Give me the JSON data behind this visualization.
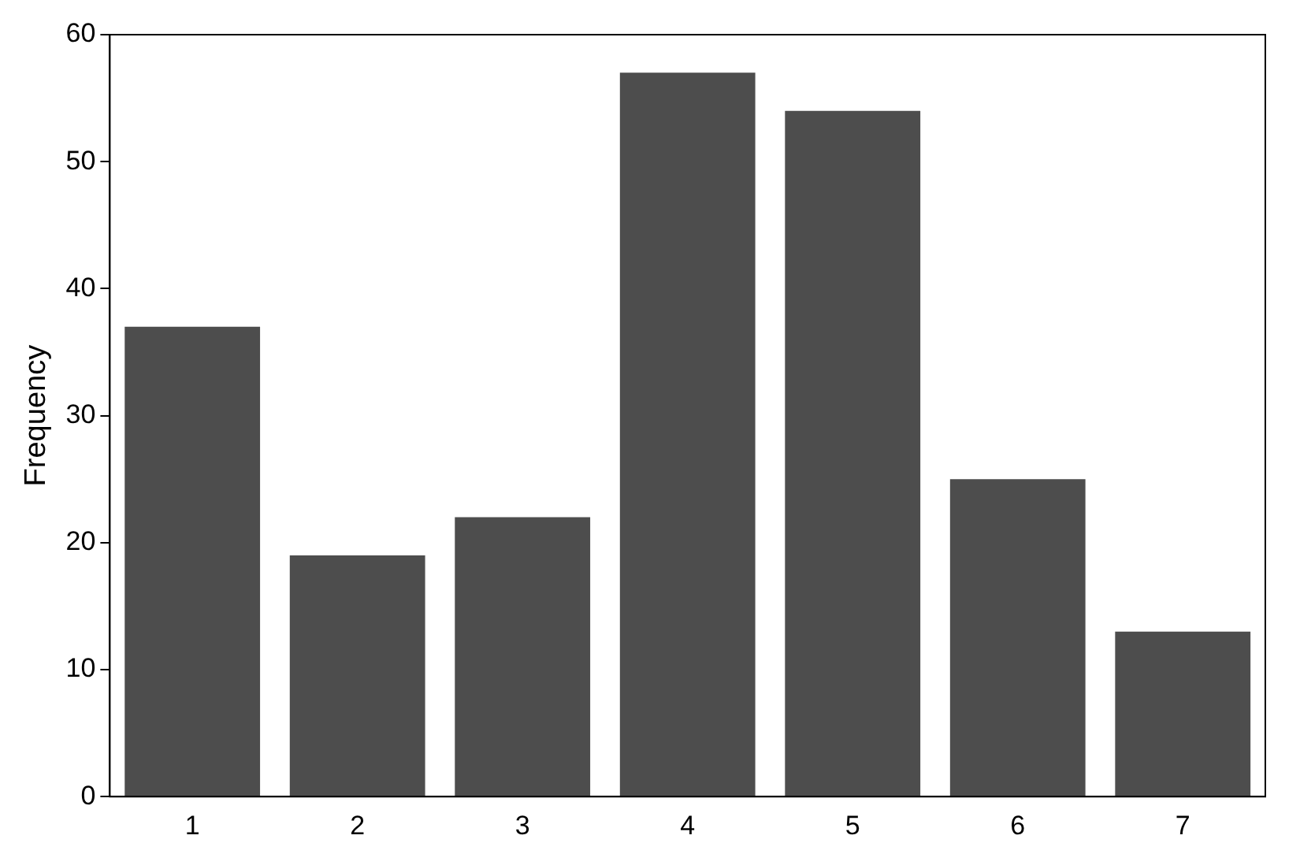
{
  "chart_data": {
    "type": "bar",
    "ylabel": "Frequency",
    "categories": [
      "1",
      "2",
      "3",
      "4",
      "5",
      "6",
      "7"
    ],
    "values": [
      37,
      19,
      22,
      57,
      54,
      25,
      13
    ],
    "color": "#4d4d4d",
    "ylim": [
      0,
      60
    ],
    "yticks": [
      0,
      10,
      20,
      30,
      40,
      50,
      60
    ],
    "grid": false,
    "legend": false
  }
}
